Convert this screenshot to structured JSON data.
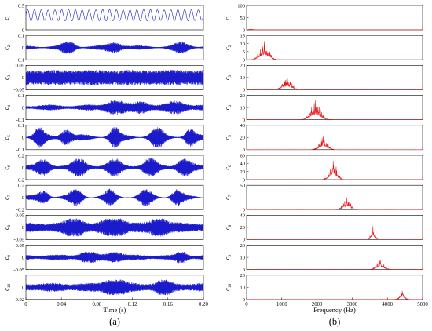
{
  "panels": [
    {
      "id": "a",
      "caption": "(a)",
      "chart_data": {
        "type": "line",
        "xlabel": "Time (s)",
        "xlim": [
          0,
          0.2
        ],
        "x_ticks": [
          0,
          0.04,
          0.08,
          0.12,
          0.16,
          0.2
        ],
        "x_tick_labels": [
          "0",
          "0.04",
          "0.08",
          "0.12",
          "0.16",
          "0.20"
        ],
        "line_color": "#1a1acc",
        "grid": false,
        "series": [
          {
            "ylabel": "c1",
            "ylim": [
              0,
              0.5
            ],
            "y_ticks": [
              0,
              0.5
            ],
            "y_tick_labels": [
              "0",
              "0.5"
            ],
            "freq": 130,
            "amp": 0.14,
            "center": 0.3,
            "min_env": 0.8,
            "peaks": [],
            "seed": 1
          },
          {
            "ylabel": "c2",
            "ylim": [
              -0.1,
              0.1
            ],
            "y_ticks": [
              -0.1,
              0,
              0.1
            ],
            "y_tick_labels": [
              "-0.1",
              "0",
              "0.1"
            ],
            "freq": 500,
            "amp": 0.045,
            "center": 0,
            "min_env": 0.25,
            "peaks": [
              [
                0.048,
                0.008,
                1
              ],
              [
                0.1,
                0.01,
                0.8
              ],
              [
                0.175,
                0.01,
                0.7
              ]
            ],
            "seed": 2
          },
          {
            "ylabel": "c3",
            "ylim": [
              -0.05,
              0.05
            ],
            "y_ticks": [
              -0.05,
              0,
              0.05
            ],
            "y_tick_labels": [
              "-0.05",
              "0",
              "0.05"
            ],
            "freq": 1150,
            "amp": 0.04,
            "center": 0,
            "min_env": 0.75,
            "peaks": [],
            "seed": 3
          },
          {
            "ylabel": "c4",
            "ylim": [
              -0.1,
              0.1
            ],
            "y_ticks": [
              -0.1,
              0,
              0.1
            ],
            "y_tick_labels": [
              "-0.1",
              "0",
              "0.1"
            ],
            "freq": 1950,
            "amp": 0.05,
            "center": 0,
            "min_env": 0.35,
            "peaks": [
              [
                0.1,
                0.012,
                1
              ],
              [
                0.13,
                0.01,
                0.8
              ],
              [
                0.17,
                0.012,
                0.8
              ]
            ],
            "seed": 4
          },
          {
            "ylabel": "c5",
            "ylim": [
              -0.1,
              0.1
            ],
            "y_ticks": [
              -0.1,
              0,
              0.1
            ],
            "y_tick_labels": [
              "-0.1",
              "0",
              "0.1"
            ],
            "freq": 2150,
            "amp": 0.075,
            "center": 0,
            "min_env": 0.2,
            "peaks": [
              [
                0.015,
                0.006,
                0.9
              ],
              [
                0.045,
                0.007,
                0.8
              ],
              [
                0.1,
                0.006,
                1
              ],
              [
                0.148,
                0.008,
                0.9
              ],
              [
                0.185,
                0.006,
                0.8
              ]
            ],
            "seed": 5
          },
          {
            "ylabel": "c6",
            "ylim": [
              -0.2,
              0.2
            ],
            "y_ticks": [
              -0.2,
              0,
              0.2
            ],
            "y_tick_labels": [
              "-0.2",
              "0",
              "0.2"
            ],
            "freq": 2450,
            "amp": 0.13,
            "center": 0,
            "min_env": 0.3,
            "peaks": [
              [
                0.02,
                0.008,
                0.7
              ],
              [
                0.06,
                0.008,
                0.9
              ],
              [
                0.1,
                0.008,
                0.8
              ],
              [
                0.14,
                0.008,
                0.9
              ],
              [
                0.178,
                0.008,
                0.9
              ]
            ],
            "seed": 6
          },
          {
            "ylabel": "c7",
            "ylim": [
              -0.2,
              0.2
            ],
            "y_ticks": [
              -0.2,
              0,
              0.2
            ],
            "y_tick_labels": [
              "-0.2",
              "0",
              "0.2"
            ],
            "freq": 2850,
            "amp": 0.13,
            "center": 0,
            "min_env": 0.15,
            "peaks": [
              [
                0.02,
                0.007,
                0.8
              ],
              [
                0.057,
                0.008,
                0.9
              ],
              [
                0.095,
                0.007,
                0.8
              ],
              [
                0.135,
                0.008,
                0.8
              ],
              [
                0.17,
                0.007,
                0.9
              ]
            ],
            "seed": 7
          },
          {
            "ylabel": "c8",
            "ylim": [
              -0.05,
              0.05
            ],
            "y_ticks": [
              -0.05,
              0,
              0.05
            ],
            "y_tick_labels": [
              "-0.05",
              "0",
              "0.05"
            ],
            "freq": 3600,
            "amp": 0.032,
            "center": 0,
            "min_env": 0.55,
            "peaks": [
              [
                0.055,
                0.01,
                1
              ],
              [
                0.1,
                0.012,
                1
              ],
              [
                0.15,
                0.01,
                0.9
              ]
            ],
            "seed": 8
          },
          {
            "ylabel": "c9",
            "ylim": [
              -0.05,
              0.05
            ],
            "y_ticks": [
              -0.05,
              0,
              0.05
            ],
            "y_tick_labels": [
              "-0.05",
              "0",
              "0.05"
            ],
            "freq": 3800,
            "amp": 0.02,
            "center": 0,
            "min_env": 0.45,
            "peaks": [
              [
                0.07,
                0.01,
                0.9
              ],
              [
                0.1,
                0.01,
                0.8
              ],
              [
                0.175,
                0.006,
                1
              ]
            ],
            "seed": 9
          },
          {
            "ylabel": "c10",
            "ylim": [
              -0.02,
              0.02
            ],
            "y_ticks": [
              -0.02,
              0
            ],
            "y_tick_labels": [
              "-0.02",
              "0"
            ],
            "freq": 4400,
            "amp": 0.011,
            "center": 0,
            "min_env": 0.55,
            "peaks": [
              [
                0.1,
                0.012,
                1
              ],
              [
                0.155,
                0.008,
                0.9
              ]
            ],
            "seed": 10
          }
        ]
      }
    },
    {
      "id": "b",
      "caption": "(b)",
      "chart_data": {
        "type": "line",
        "xlabel": "Frequency (Hz)",
        "xlim": [
          0,
          5000
        ],
        "x_ticks": [
          0,
          1000,
          2000,
          3000,
          4000,
          5000
        ],
        "x_tick_labels": [
          "0",
          "1000",
          "2000",
          "3000",
          "4000",
          "5000"
        ],
        "line_color": "#e41a1a",
        "grid": false,
        "series": [
          {
            "ylabel": "c1",
            "ylim": [
              0,
              100
            ],
            "y_ticks": [
              0,
              50,
              100
            ],
            "y_tick_labels": [
              "0",
              "50",
              "100"
            ],
            "center": 130,
            "width": 120,
            "peak": 4,
            "seed": 11
          },
          {
            "ylabel": "c2",
            "ylim": [
              0,
              15
            ],
            "y_ticks": [
              0,
              5,
              10,
              15
            ],
            "y_tick_labels": [
              "0",
              "5",
              "10",
              "15"
            ],
            "center": 500,
            "width": 180,
            "peak": 11.5,
            "seed": 12
          },
          {
            "ylabel": "c3",
            "ylim": [
              0,
              20
            ],
            "y_ticks": [
              0,
              10,
              20
            ],
            "y_tick_labels": [
              "0",
              "10",
              "20"
            ],
            "center": 1150,
            "width": 180,
            "peak": 11,
            "seed": 13
          },
          {
            "ylabel": "c4",
            "ylim": [
              0,
              20
            ],
            "y_ticks": [
              0,
              10,
              20
            ],
            "y_tick_labels": [
              "0",
              "10",
              "20"
            ],
            "center": 1950,
            "width": 200,
            "peak": 16,
            "seed": 14
          },
          {
            "ylabel": "c5",
            "ylim": [
              0,
              40
            ],
            "y_ticks": [
              0,
              20,
              40
            ],
            "y_tick_labels": [
              "0",
              "20",
              "40"
            ],
            "center": 2180,
            "width": 160,
            "peak": 22,
            "seed": 15
          },
          {
            "ylabel": "c6",
            "ylim": [
              0,
              60
            ],
            "y_ticks": [
              0,
              20,
              40,
              60
            ],
            "y_tick_labels": [
              "0",
              "20",
              "40",
              "60"
            ],
            "center": 2460,
            "width": 150,
            "peak": 46,
            "seed": 16
          },
          {
            "ylabel": "c7",
            "ylim": [
              0,
              50
            ],
            "y_ticks": [
              0,
              50
            ],
            "y_tick_labels": [
              "0",
              "50"
            ],
            "center": 2850,
            "width": 150,
            "peak": 25,
            "seed": 17
          },
          {
            "ylabel": "c8",
            "ylim": [
              0,
              40
            ],
            "y_ticks": [
              0,
              20,
              40
            ],
            "y_tick_labels": [
              "0",
              "20",
              "40"
            ],
            "center": 3590,
            "width": 80,
            "peak": 22,
            "seed": 18
          },
          {
            "ylabel": "c9",
            "ylim": [
              0,
              20
            ],
            "y_ticks": [
              0,
              10,
              20
            ],
            "y_tick_labels": [
              "0",
              "10",
              "20"
            ],
            "center": 3800,
            "width": 150,
            "peak": 8,
            "seed": 19
          },
          {
            "ylabel": "c10",
            "ylim": [
              0,
              20
            ],
            "y_ticks": [
              0,
              10,
              20
            ],
            "y_tick_labels": [
              "0",
              "10",
              "20"
            ],
            "center": 4420,
            "width": 100,
            "peak": 7,
            "seed": 20
          }
        ]
      }
    }
  ]
}
